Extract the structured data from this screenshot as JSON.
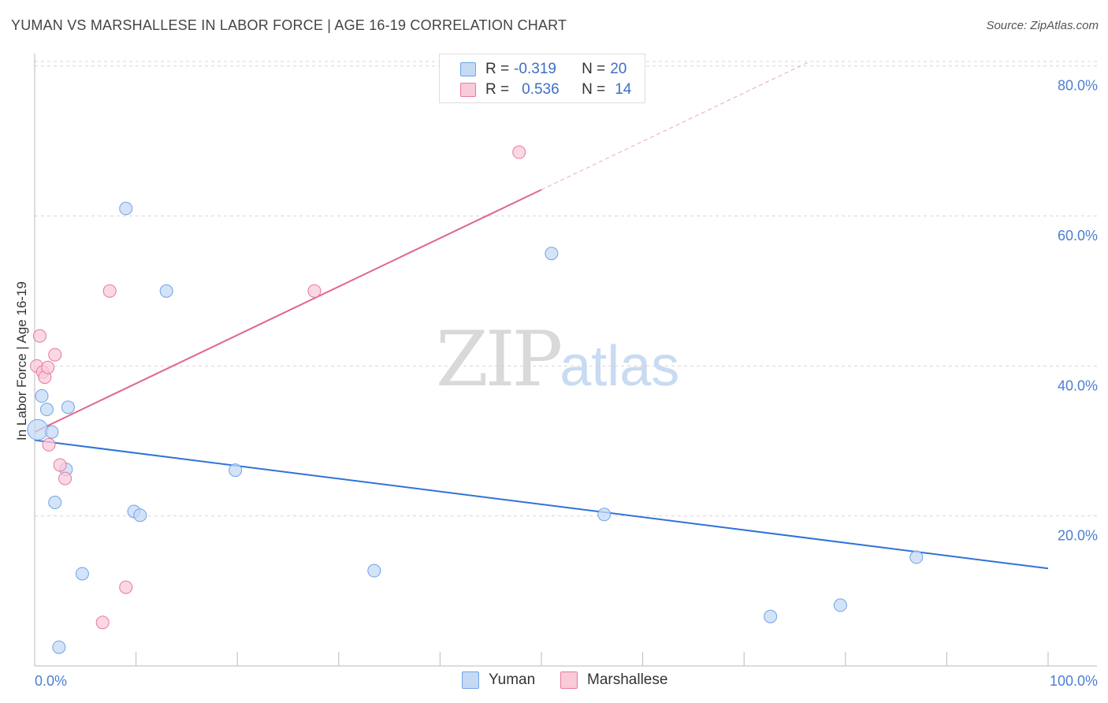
{
  "title": "YUMAN VS MARSHALLESE IN LABOR FORCE | AGE 16-19 CORRELATION CHART",
  "source": "Source: ZipAtlas.com",
  "watermark": {
    "zip": "ZIP",
    "atlas": "atlas"
  },
  "legend": {
    "rows": [
      {
        "r_label": "R =",
        "r_value": "-0.319",
        "n_label": "N =",
        "n_value": "20"
      },
      {
        "r_label": "R =",
        "r_value": "0.536",
        "n_label": "N =",
        "n_value": "14"
      }
    ]
  },
  "chart_data": {
    "type": "scatter",
    "title": "YUMAN VS MARSHALLESE IN LABOR FORCE | AGE 16-19 CORRELATION CHART",
    "xlabel": "",
    "ylabel": "In Labor Force | Age 16-19",
    "xlim": [
      0,
      100
    ],
    "ylim": [
      0,
      80
    ],
    "x_tick_labels": [
      "0.0%",
      "100.0%"
    ],
    "y_ticks": [
      20,
      40,
      60,
      80
    ],
    "y_tick_labels": [
      "20.0%",
      "40.0%",
      "60.0%",
      "80.0%"
    ],
    "grid": true,
    "legend_position": "top-center",
    "series": [
      {
        "name": "Yuman",
        "color": "#6fa3e8",
        "fill": "#c5d9f5",
        "points": [
          [
            0.3,
            31.5
          ],
          [
            0.7,
            36
          ],
          [
            1.2,
            34.2
          ],
          [
            1.7,
            31.2
          ],
          [
            2.0,
            21.8
          ],
          [
            2.4,
            2.5
          ],
          [
            3.1,
            26.2
          ],
          [
            3.3,
            34.5
          ],
          [
            4.7,
            12.3
          ],
          [
            9.0,
            61
          ],
          [
            9.8,
            20.6
          ],
          [
            10.4,
            20.1
          ],
          [
            13.0,
            50
          ],
          [
            19.8,
            26.1
          ],
          [
            33.5,
            12.7
          ],
          [
            51.0,
            55
          ],
          [
            56.2,
            20.2
          ],
          [
            72.6,
            6.6
          ],
          [
            79.5,
            8.1
          ],
          [
            87.0,
            14.5
          ]
        ],
        "trend": {
          "x": [
            0,
            100
          ],
          "y": [
            30.1,
            13.0
          ]
        }
      },
      {
        "name": "Marshallese",
        "color": "#e8799e",
        "fill": "#f9cbd9",
        "points": [
          [
            0.2,
            40
          ],
          [
            0.5,
            44
          ],
          [
            0.8,
            39.2
          ],
          [
            1.0,
            38.5
          ],
          [
            1.3,
            39.8
          ],
          [
            1.4,
            29.5
          ],
          [
            2.0,
            41.5
          ],
          [
            2.5,
            26.8
          ],
          [
            3.0,
            25
          ],
          [
            6.7,
            5.8
          ],
          [
            7.4,
            50
          ],
          [
            9.0,
            10.5
          ],
          [
            27.6,
            50
          ],
          [
            47.8,
            68.5
          ]
        ],
        "trend": {
          "x": [
            0,
            50
          ],
          "y": [
            31.2,
            63.5
          ]
        },
        "trend_dashed": {
          "x": [
            50,
            76.5
          ],
          "y": [
            63.5,
            80.6
          ]
        }
      }
    ]
  }
}
